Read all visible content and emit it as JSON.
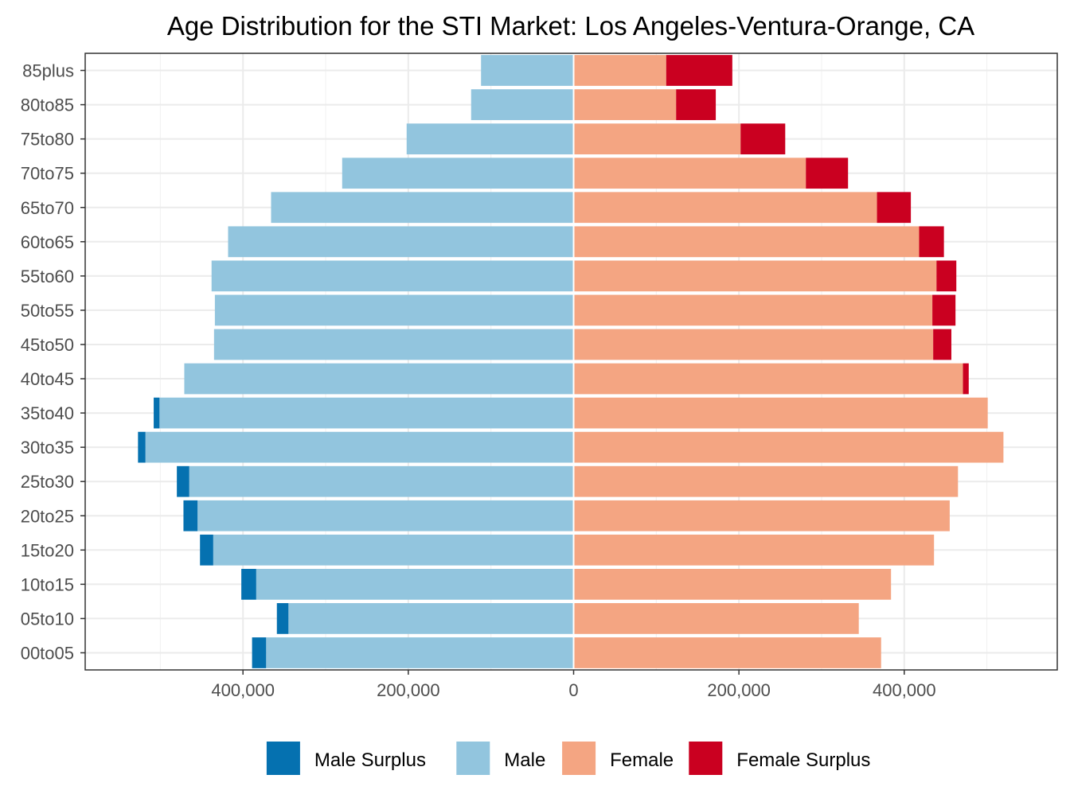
{
  "chart_data": {
    "type": "bar",
    "title": "Age Distribution for the STI Market: Los Angeles-Ventura-Orange, CA",
    "xlabel": "",
    "ylabel": "",
    "orientation": "horizontal-population-pyramid",
    "categories": [
      "00to05",
      "05to10",
      "10to15",
      "15to20",
      "20to25",
      "25to30",
      "30to35",
      "35to40",
      "40to45",
      "45to50",
      "50to55",
      "55to60",
      "60to65",
      "65to70",
      "70to75",
      "75to80",
      "80to85",
      "85plus"
    ],
    "series": [
      {
        "name": "Male Surplus",
        "color": "#0571b0",
        "values": [
          17000,
          14000,
          18000,
          16000,
          17000,
          15000,
          9000,
          7000,
          0,
          0,
          0,
          0,
          0,
          0,
          0,
          0,
          0,
          0
        ]
      },
      {
        "name": "Male",
        "color": "#92c5de",
        "values": [
          372000,
          345000,
          384000,
          436000,
          455000,
          465000,
          518000,
          501000,
          471000,
          435000,
          434000,
          438000,
          418000,
          366000,
          280000,
          202000,
          124000,
          112000
        ]
      },
      {
        "name": "Female",
        "color": "#f4a582",
        "values": [
          372000,
          345000,
          384000,
          436000,
          455000,
          465000,
          520000,
          501000,
          471000,
          435000,
          434000,
          439000,
          418000,
          367000,
          281000,
          202000,
          124000,
          112000
        ]
      },
      {
        "name": "Female Surplus",
        "color": "#ca0020",
        "values": [
          0,
          0,
          0,
          0,
          0,
          0,
          0,
          0,
          7000,
          22000,
          28000,
          24000,
          30000,
          41000,
          51000,
          54000,
          48000,
          80000
        ]
      }
    ],
    "xlim": [
      -588000,
      588000
    ],
    "xticks": [
      -400000,
      -200000,
      0,
      200000,
      400000
    ],
    "xtick_labels": [
      "400,000",
      "200,000",
      "0",
      "200,000",
      "400,000"
    ],
    "grid": true,
    "legend": {
      "position": "bottom",
      "entries": [
        {
          "label": "Male Surplus",
          "color": "#0571b0"
        },
        {
          "label": "Male",
          "color": "#92c5de"
        },
        {
          "label": "Female",
          "color": "#f4a582"
        },
        {
          "label": "Female Surplus",
          "color": "#ca0020"
        }
      ]
    }
  }
}
